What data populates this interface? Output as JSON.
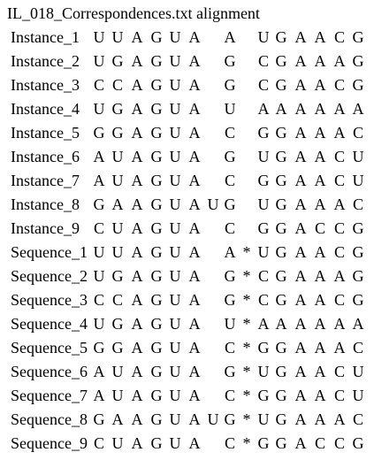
{
  "document": {
    "title": "IL_018_Correspondences.txt alignment",
    "rows": [
      {
        "label": "Instance_1",
        "cells": [
          "U",
          "U",
          "A",
          "G",
          "U",
          "A",
          "",
          "A",
          "",
          "U",
          "G",
          "A",
          "A",
          "C",
          "G"
        ]
      },
      {
        "label": "Instance_2",
        "cells": [
          "U",
          "G",
          "A",
          "G",
          "U",
          "A",
          "",
          "G",
          "",
          "C",
          "G",
          "A",
          "A",
          "A",
          "G"
        ]
      },
      {
        "label": "Instance_3",
        "cells": [
          "C",
          "C",
          "A",
          "G",
          "U",
          "A",
          "",
          "G",
          "",
          "C",
          "G",
          "A",
          "A",
          "C",
          "G"
        ]
      },
      {
        "label": "Instance_4",
        "cells": [
          "U",
          "G",
          "A",
          "G",
          "U",
          "A",
          "",
          "U",
          "",
          "A",
          "A",
          "A",
          "A",
          "A",
          "A"
        ]
      },
      {
        "label": "Instance_5",
        "cells": [
          "G",
          "G",
          "A",
          "G",
          "U",
          "A",
          "",
          "C",
          "",
          "G",
          "G",
          "A",
          "A",
          "A",
          "C"
        ]
      },
      {
        "label": "Instance_6",
        "cells": [
          "A",
          "U",
          "A",
          "G",
          "U",
          "A",
          "",
          "G",
          "",
          "U",
          "G",
          "A",
          "A",
          "C",
          "U"
        ]
      },
      {
        "label": "Instance_7",
        "cells": [
          "A",
          "U",
          "A",
          "G",
          "U",
          "A",
          "",
          "C",
          "",
          "G",
          "G",
          "A",
          "A",
          "C",
          "U"
        ]
      },
      {
        "label": "Instance_8",
        "cells": [
          "G",
          "A",
          "A",
          "G",
          "U",
          "A",
          "U",
          "G",
          "",
          "U",
          "G",
          "A",
          "A",
          "A",
          "C"
        ]
      },
      {
        "label": "Instance_9",
        "cells": [
          "C",
          "U",
          "A",
          "G",
          "U",
          "A",
          "",
          "C",
          "",
          "G",
          "G",
          "A",
          "C",
          "C",
          "G"
        ]
      },
      {
        "label": "Sequence_1",
        "cells": [
          "U",
          "U",
          "A",
          "G",
          "U",
          "A",
          "",
          "A",
          "*",
          "U",
          "G",
          "A",
          "A",
          "C",
          "G"
        ]
      },
      {
        "label": "Sequence_2",
        "cells": [
          "U",
          "G",
          "A",
          "G",
          "U",
          "A",
          "",
          "G",
          "*",
          "C",
          "G",
          "A",
          "A",
          "A",
          "G"
        ]
      },
      {
        "label": "Sequence_3",
        "cells": [
          "C",
          "C",
          "A",
          "G",
          "U",
          "A",
          "",
          "G",
          "*",
          "C",
          "G",
          "A",
          "A",
          "C",
          "G"
        ]
      },
      {
        "label": "Sequence_4",
        "cells": [
          "U",
          "G",
          "A",
          "G",
          "U",
          "A",
          "",
          "U",
          "*",
          "A",
          "A",
          "A",
          "A",
          "A",
          "A"
        ]
      },
      {
        "label": "Sequence_5",
        "cells": [
          "G",
          "G",
          "A",
          "G",
          "U",
          "A",
          "",
          "C",
          "*",
          "G",
          "G",
          "A",
          "A",
          "A",
          "C"
        ]
      },
      {
        "label": "Sequence_6",
        "cells": [
          "A",
          "U",
          "A",
          "G",
          "U",
          "A",
          "",
          "G",
          "*",
          "U",
          "G",
          "A",
          "A",
          "C",
          "U"
        ]
      },
      {
        "label": "Sequence_7",
        "cells": [
          "A",
          "U",
          "A",
          "G",
          "U",
          "A",
          "",
          "C",
          "*",
          "G",
          "G",
          "A",
          "A",
          "C",
          "U"
        ]
      },
      {
        "label": "Sequence_8",
        "cells": [
          "G",
          "A",
          "A",
          "G",
          "U",
          "A",
          "U",
          "G",
          "*",
          "U",
          "G",
          "A",
          "A",
          "A",
          "C"
        ]
      },
      {
        "label": "Sequence_9",
        "cells": [
          "C",
          "U",
          "A",
          "G",
          "U",
          "A",
          "",
          "C",
          "*",
          "G",
          "G",
          "A",
          "C",
          "C",
          "G"
        ]
      }
    ]
  }
}
